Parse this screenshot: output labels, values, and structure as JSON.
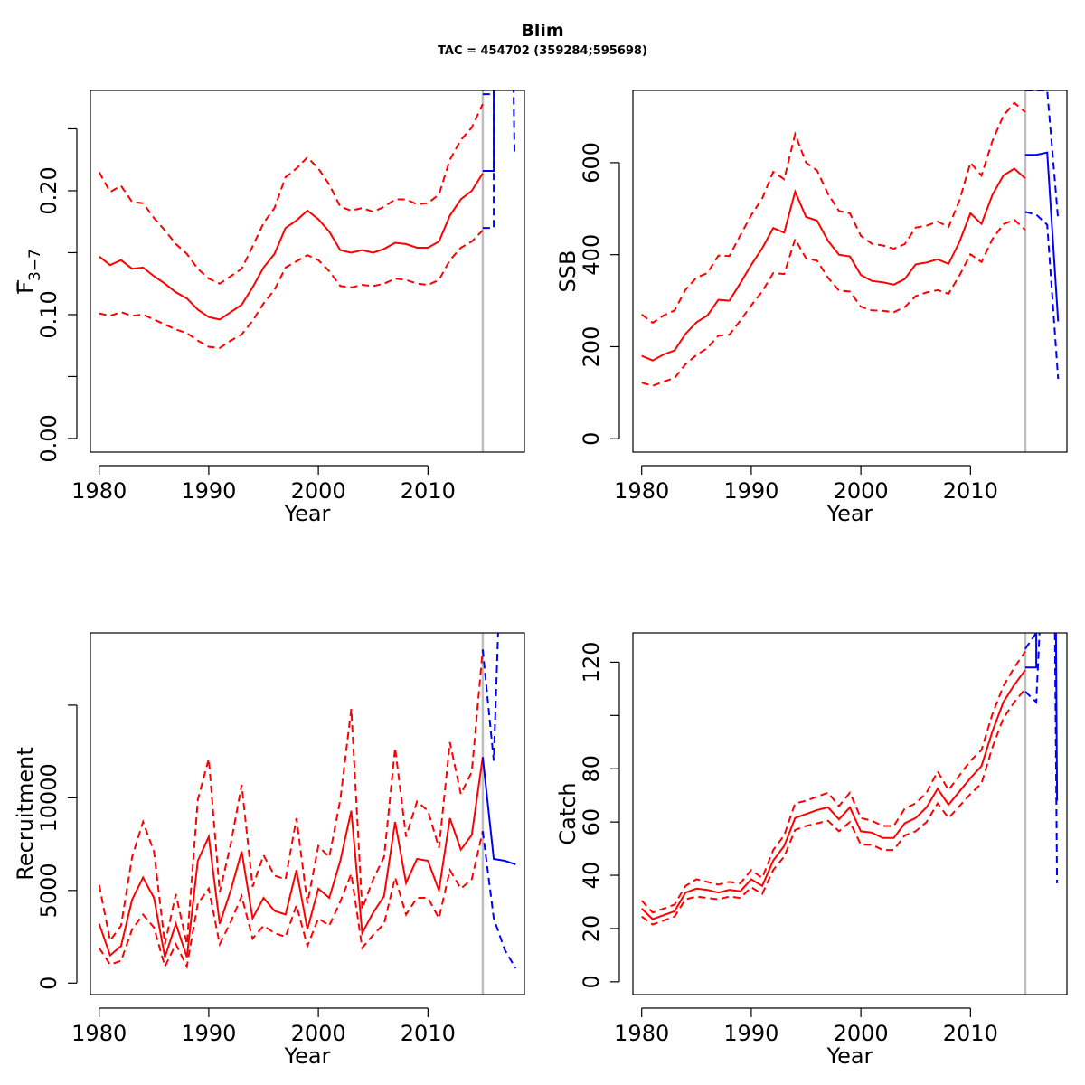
{
  "page": {
    "title": "Blim",
    "subtitle": "TAC = 454702 (359284;595698)"
  },
  "colors": {
    "historic": "#ff0000",
    "forecast": "#0000ff",
    "divider": "#bebebe",
    "axis": "#000000"
  },
  "chart_data": [
    {
      "id": "fbar",
      "type": "line",
      "title": "",
      "xlabel": "Year",
      "ylabel": "F",
      "ylabel_subscript": "3−7",
      "xlim": [
        1979.2,
        2018.8
      ],
      "ylim": [
        -0.011,
        0.281
      ],
      "xticks": [
        1980,
        1990,
        2000,
        2010
      ],
      "yticks": [
        0.0,
        0.05,
        0.1,
        0.15,
        0.2,
        0.25
      ],
      "ytick_labels": [
        "0.00",
        "",
        "0.10",
        "",
        "0.20",
        ""
      ],
      "divider_x": 2015,
      "historic": {
        "x": [
          1980,
          1981,
          1982,
          1983,
          1984,
          1985,
          1986,
          1987,
          1988,
          1989,
          1990,
          1991,
          1992,
          1993,
          1994,
          1995,
          1996,
          1997,
          1998,
          1999,
          2000,
          2001,
          2002,
          2003,
          2004,
          2005,
          2006,
          2007,
          2008,
          2009,
          2010,
          2011,
          2012,
          2013,
          2014,
          2015
        ],
        "mid": [
          0.147,
          0.14,
          0.144,
          0.137,
          0.138,
          0.131,
          0.125,
          0.118,
          0.113,
          0.104,
          0.098,
          0.096,
          0.102,
          0.108,
          0.122,
          0.138,
          0.149,
          0.17,
          0.176,
          0.184,
          0.177,
          0.167,
          0.152,
          0.15,
          0.152,
          0.15,
          0.153,
          0.158,
          0.157,
          0.154,
          0.154,
          0.159,
          0.18,
          0.193,
          0.2,
          0.214
        ],
        "lower": [
          0.101,
          0.099,
          0.102,
          0.099,
          0.1,
          0.096,
          0.092,
          0.088,
          0.085,
          0.079,
          0.074,
          0.073,
          0.079,
          0.084,
          0.095,
          0.109,
          0.12,
          0.138,
          0.143,
          0.148,
          0.144,
          0.135,
          0.123,
          0.122,
          0.124,
          0.123,
          0.125,
          0.129,
          0.128,
          0.125,
          0.124,
          0.128,
          0.144,
          0.154,
          0.159,
          0.168
        ],
        "upper": [
          0.215,
          0.199,
          0.204,
          0.191,
          0.19,
          0.178,
          0.168,
          0.157,
          0.149,
          0.137,
          0.129,
          0.125,
          0.131,
          0.137,
          0.155,
          0.174,
          0.186,
          0.211,
          0.218,
          0.227,
          0.218,
          0.205,
          0.187,
          0.184,
          0.186,
          0.183,
          0.187,
          0.193,
          0.193,
          0.189,
          0.19,
          0.197,
          0.225,
          0.241,
          0.251,
          0.27
        ]
      },
      "forecast": {
        "mid": [
          [
            2015,
            0.216
          ],
          [
            2016,
            0.216
          ],
          [
            2016,
            0.285
          ]
        ],
        "lower": [
          [
            2015,
            0.17
          ],
          [
            2016,
            0.17
          ],
          [
            2016,
            0.285
          ]
        ],
        "upper": [
          [
            2015,
            0.278
          ],
          [
            2016,
            0.278
          ],
          [
            2016,
            0.285
          ]
        ],
        "tail": [
          [
            2017.8,
            0.285
          ],
          [
            2017.9,
            0.229
          ]
        ]
      }
    },
    {
      "id": "ssb",
      "type": "line",
      "title": "",
      "xlabel": "Year",
      "ylabel": "SSB",
      "xlim": [
        1979.2,
        2018.8
      ],
      "ylim": [
        -29,
        757
      ],
      "xticks": [
        1980,
        1990,
        2000,
        2010
      ],
      "yticks": [
        0,
        200,
        400,
        600
      ],
      "ytick_labels": [
        "0",
        "200",
        "400",
        "600"
      ],
      "divider_x": 2015,
      "historic": {
        "x": [
          1980,
          1981,
          1982,
          1983,
          1984,
          1985,
          1986,
          1987,
          1988,
          1989,
          1990,
          1991,
          1992,
          1993,
          1994,
          1995,
          1996,
          1997,
          1998,
          1999,
          2000,
          2001,
          2002,
          2003,
          2004,
          2005,
          2006,
          2007,
          2008,
          2009,
          2010,
          2011,
          2012,
          2013,
          2014,
          2015
        ],
        "mid": [
          180,
          170,
          183,
          192,
          228,
          253,
          268,
          302,
          300,
          338,
          378,
          414,
          458,
          448,
          537,
          482,
          474,
          430,
          400,
          396,
          356,
          343,
          340,
          335,
          347,
          379,
          383,
          390,
          380,
          428,
          490,
          467,
          530,
          572,
          587,
          566
        ],
        "lower": [
          122,
          115,
          124,
          132,
          162,
          182,
          197,
          224,
          226,
          257,
          290,
          320,
          360,
          358,
          434,
          392,
          387,
          350,
          322,
          320,
          287,
          279,
          278,
          275,
          286,
          310,
          318,
          323,
          315,
          355,
          401,
          384,
          434,
          466,
          476,
          454
        ],
        "upper": [
          270,
          252,
          268,
          279,
          324,
          350,
          360,
          398,
          397,
          442,
          486,
          522,
          580,
          564,
          662,
          600,
          583,
          532,
          495,
          490,
          441,
          424,
          420,
          413,
          423,
          459,
          463,
          472,
          460,
          518,
          600,
          572,
          647,
          702,
          730,
          710
        ]
      },
      "forecast": {
        "mid": [
          [
            2015,
            617
          ],
          [
            2016,
            617
          ],
          [
            2017,
            622
          ],
          [
            2018,
            255
          ]
        ],
        "lower": [
          [
            2015,
            493
          ],
          [
            2016,
            487
          ],
          [
            2017,
            465
          ],
          [
            2018,
            130
          ]
        ],
        "upper": [
          [
            2015,
            757
          ],
          [
            2017,
            757
          ],
          [
            2018,
            476
          ]
        ]
      }
    },
    {
      "id": "recruitment",
      "type": "line",
      "title": "",
      "xlabel": "Year",
      "ylabel": "Recruitment",
      "xlim": [
        1979.2,
        2018.8
      ],
      "ylim": [
        -620,
        18900
      ],
      "xticks": [
        1980,
        1990,
        2000,
        2010
      ],
      "yticks": [
        0,
        5000,
        10000,
        15000
      ],
      "ytick_labels": [
        "0",
        "5000",
        "10000",
        ""
      ],
      "divider_x": 2015,
      "historic": {
        "x": [
          1980,
          1981,
          1982,
          1983,
          1984,
          1985,
          1986,
          1987,
          1988,
          1989,
          1990,
          1991,
          1992,
          1993,
          1994,
          1995,
          1996,
          1997,
          1998,
          1999,
          2000,
          2001,
          2002,
          2003,
          2004,
          2005,
          2006,
          2007,
          2008,
          2009,
          2010,
          2011,
          2012,
          2013,
          2014,
          2015
        ],
        "mid": [
          3200,
          1500,
          2000,
          4500,
          5700,
          4600,
          1400,
          3200,
          1400,
          6600,
          7900,
          3200,
          5000,
          7100,
          3500,
          4600,
          3900,
          3700,
          6100,
          2900,
          5100,
          4600,
          6600,
          9300,
          2700,
          3800,
          4700,
          8700,
          5400,
          6700,
          6600,
          5000,
          8900,
          7200,
          8000,
          12200
        ],
        "lower": [
          1900,
          1000,
          1200,
          2900,
          3700,
          3000,
          900,
          2100,
          900,
          4300,
          5100,
          2100,
          3300,
          4700,
          2400,
          3100,
          2700,
          2500,
          4200,
          2000,
          3500,
          3100,
          4400,
          5900,
          1900,
          2600,
          3200,
          5700,
          3700,
          4600,
          4600,
          3500,
          6100,
          5100,
          5600,
          8200
        ],
        "upper": [
          5300,
          2300,
          3100,
          6800,
          8700,
          7100,
          2100,
          4800,
          2100,
          9900,
          12100,
          4900,
          7500,
          10700,
          5200,
          6900,
          5800,
          5600,
          8900,
          4300,
          7400,
          6800,
          9900,
          14800,
          4000,
          5600,
          6800,
          12700,
          7900,
          9800,
          9300,
          7300,
          13000,
          10200,
          11400,
          18000
        ]
      },
      "forecast": {
        "mid": [
          [
            2015,
            12200
          ],
          [
            2016,
            6700
          ],
          [
            2017,
            6600
          ],
          [
            2018,
            6400
          ]
        ],
        "lower": [
          [
            2015,
            8200
          ],
          [
            2016,
            3500
          ],
          [
            2017,
            1800
          ],
          [
            2018,
            800
          ]
        ],
        "upper": [
          [
            2015,
            18000
          ],
          [
            2016,
            12000
          ],
          [
            2016.4,
            18900
          ]
        ]
      }
    },
    {
      "id": "catch",
      "type": "line",
      "title": "",
      "xlabel": "Year",
      "ylabel": "Catch",
      "xlim": [
        1979.2,
        2018.8
      ],
      "ylim": [
        -4.8,
        131
      ],
      "xticks": [
        1980,
        1990,
        2000,
        2010
      ],
      "yticks": [
        0,
        20,
        40,
        60,
        80,
        100,
        120
      ],
      "ytick_labels": [
        "0",
        "20",
        "40",
        "60",
        "80",
        "",
        "120"
      ],
      "divider_x": 2015,
      "historic": {
        "x": [
          1980,
          1981,
          1982,
          1983,
          1984,
          1985,
          1986,
          1987,
          1988,
          1989,
          1990,
          1991,
          1992,
          1993,
          1994,
          1995,
          1996,
          1997,
          1998,
          1999,
          2000,
          2001,
          2002,
          2003,
          2004,
          2005,
          2006,
          2007,
          2008,
          2009,
          2010,
          2011,
          2012,
          2013,
          2014,
          2015
        ],
        "mid": [
          27.5,
          23.5,
          25,
          26.5,
          33.5,
          35,
          34.5,
          33.5,
          34.5,
          34,
          38.5,
          36,
          45.5,
          51,
          61.5,
          63,
          64.5,
          65.5,
          61,
          65.5,
          56.5,
          56,
          54,
          54,
          59.5,
          61.5,
          65.5,
          72.5,
          66.5,
          71.5,
          76.5,
          81,
          94,
          105,
          111.5,
          117
        ],
        "lower": [
          24.5,
          21.5,
          23,
          24.5,
          31,
          32,
          31.5,
          31,
          32,
          31.5,
          35.5,
          33,
          42,
          47,
          57,
          58.5,
          59.5,
          60.5,
          56.5,
          60,
          51.5,
          51.5,
          49.5,
          49.5,
          55,
          56.5,
          60,
          67,
          61.5,
          66,
          70.5,
          74.5,
          88,
          99,
          105,
          110
        ],
        "upper": [
          30.5,
          26,
          27.5,
          29,
          36,
          38.5,
          37.5,
          36.5,
          37.5,
          37,
          42,
          39,
          49.5,
          55,
          67,
          68,
          69.5,
          71,
          66,
          71,
          61.5,
          60.5,
          58.5,
          58.5,
          65,
          67,
          71,
          79,
          72,
          77.5,
          83,
          87,
          100.5,
          111,
          118,
          124
        ]
      },
      "forecast": {
        "mid": [
          [
            2015,
            118
          ],
          [
            2016,
            118
          ],
          [
            2016,
            131
          ]
        ],
        "lower": [
          [
            2015,
            109
          ],
          [
            2016,
            105
          ],
          [
            2016.3,
            131
          ]
        ],
        "upper": [
          [
            2015,
            125
          ],
          [
            2016,
            131
          ]
        ],
        "tail": [
          [
            2017.8,
            131
          ],
          [
            2017.9,
            68
          ]
        ],
        "tail_lower": [
          [
            2017.7,
            131
          ],
          [
            2017.9,
            37
          ]
        ],
        "tail_upper": [
          [
            2017.8,
            131
          ],
          [
            2017.9,
            131
          ]
        ]
      }
    }
  ]
}
